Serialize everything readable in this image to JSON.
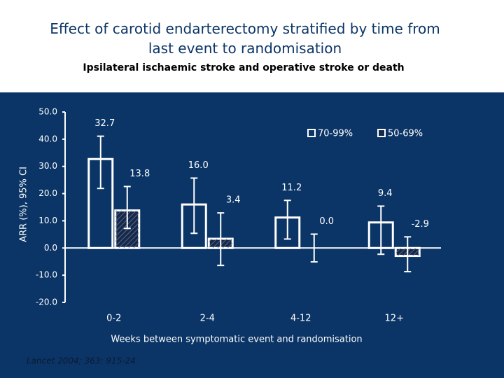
{
  "chart_data": {
    "type": "bar",
    "title": "Effect of carotid endarterectomy stratified by time from last event to randomisation",
    "subtitle": "Ipsilateral ischaemic stroke and operative stroke or death",
    "y_label": "ARR (%), 95% CI",
    "x_label": "Weeks between symptomatic event and randomisation",
    "source": "Lancet 2004; 363: 915-24",
    "categories": [
      "0-2",
      "2-4",
      "4-12",
      "12+"
    ],
    "series": [
      {
        "name": "70-99%",
        "color": "#0b3566",
        "values": [
          32.7,
          16.0,
          11.2,
          9.4
        ],
        "value_labels": [
          "32.7",
          "16.0",
          "11.2",
          "9.4"
        ],
        "error_low": [
          21.9,
          5.4,
          3.3,
          -2.3
        ],
        "error_high": [
          41.1,
          25.7,
          17.5,
          15.4
        ]
      },
      {
        "name": "50-69%",
        "color": "#16294a",
        "values": [
          13.8,
          3.4,
          0,
          -2.9
        ],
        "value_labels": [
          "13.8",
          "3.4",
          "0.0",
          "-2.9"
        ],
        "error_low": [
          7.2,
          -6.4,
          -5.1,
          -8.7
        ],
        "error_high": [
          22.6,
          12.9,
          5.1,
          4.1
        ]
      }
    ],
    "ylim": [
      -20,
      50
    ],
    "yticks": [
      {
        "value": -20,
        "label": "-20.0"
      },
      {
        "value": -10,
        "label": "-10.0"
      },
      {
        "value": 0,
        "label": "0.0"
      },
      {
        "value": 10,
        "label": "10.0"
      },
      {
        "value": 20,
        "label": "20.0"
      },
      {
        "value": 30,
        "label": "30.0"
      },
      {
        "value": 40,
        "label": "40.0"
      },
      {
        "value": 50,
        "label": "50.0"
      }
    ]
  }
}
